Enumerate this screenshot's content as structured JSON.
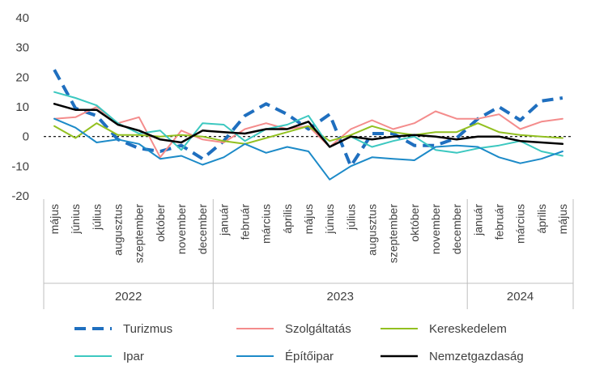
{
  "chart_data": {
    "type": "line",
    "title": "",
    "xlabel": "",
    "ylabel": "",
    "ylim": [
      -20,
      40
    ],
    "yticks": [
      -20,
      -10,
      0,
      10,
      20,
      30,
      40
    ],
    "categories": [
      "május",
      "június",
      "július",
      "augusztus",
      "szeptember",
      "október",
      "november",
      "december",
      "január",
      "február",
      "március",
      "április",
      "május",
      "június",
      "július",
      "augusztus",
      "szeptember",
      "október",
      "november",
      "december",
      "január",
      "február",
      "március",
      "április",
      "május"
    ],
    "years": [
      {
        "label": "2022",
        "start": 0,
        "end": 7
      },
      {
        "label": "2023",
        "start": 8,
        "end": 19
      },
      {
        "label": "2024",
        "start": 20,
        "end": 24
      }
    ],
    "zero_line": {
      "value": 0,
      "style": "dashed"
    },
    "series": [
      {
        "name": "Turizmus",
        "color": "#1f6fbf",
        "dash": "long-dash",
        "width": 4,
        "values": [
          22.5,
          9.5,
          7,
          -1,
          -4,
          -5,
          -3,
          -7.5,
          -1.5,
          7,
          11,
          7.5,
          2.5,
          7.5,
          -10,
          1,
          1,
          -3,
          -3,
          -0.5,
          6,
          10,
          5.5,
          12,
          13
        ]
      },
      {
        "name": "Szolgáltatás",
        "color": "#f48c8c",
        "dash": "solid",
        "width": 2,
        "values": [
          6,
          6.5,
          10,
          4.5,
          6.5,
          -7,
          2,
          -1,
          -2,
          2.5,
          4.5,
          2.5,
          3.5,
          -3.5,
          2.5,
          5.5,
          2.5,
          4.5,
          8.5,
          6,
          6,
          7.5,
          2.5,
          5,
          6
        ]
      },
      {
        "name": "Kereskedelem",
        "color": "#92c020",
        "dash": "solid",
        "width": 2,
        "values": [
          3.5,
          -0.5,
          4.5,
          0.5,
          0.5,
          0,
          0.5,
          0,
          -1.5,
          -2.5,
          -0.5,
          1.5,
          3.5,
          -1.5,
          0.5,
          3.5,
          1.5,
          0.5,
          1.5,
          1.5,
          4.5,
          1.5,
          0.5,
          0,
          -0.5
        ]
      },
      {
        "name": "Ipar",
        "color": "#3cc8c0",
        "dash": "solid",
        "width": 2,
        "values": [
          15,
          13,
          10.5,
          4.5,
          1,
          2,
          -4.5,
          4.5,
          4,
          -1.5,
          2.5,
          4,
          7,
          -3.5,
          0,
          -3.5,
          -1.5,
          0,
          -4.5,
          -5.5,
          -4,
          -3,
          -1.5,
          -5,
          -6.5
        ]
      },
      {
        "name": "Építőipar",
        "color": "#1c8ac8",
        "dash": "solid",
        "width": 2,
        "values": [
          6,
          3,
          -2,
          -1,
          -2.5,
          -7.5,
          -6.5,
          -9.5,
          -7,
          -2.5,
          -5.5,
          -3.5,
          -5,
          -14.5,
          -10,
          -7,
          -7.5,
          -8,
          -3.5,
          -3,
          -3.5,
          -7,
          -9,
          -7.5,
          -5
        ]
      },
      {
        "name": "Nemzetgazdaság",
        "color": "#000000",
        "dash": "solid",
        "width": 2.5,
        "values": [
          11,
          9,
          9,
          4,
          2,
          -1,
          -2,
          2,
          1.5,
          1,
          2.5,
          2.5,
          5,
          -3.5,
          0,
          -1,
          0,
          0.5,
          0,
          -1,
          0,
          0,
          -1.5,
          -2,
          -2.5
        ]
      }
    ],
    "legend_position": "bottom"
  }
}
